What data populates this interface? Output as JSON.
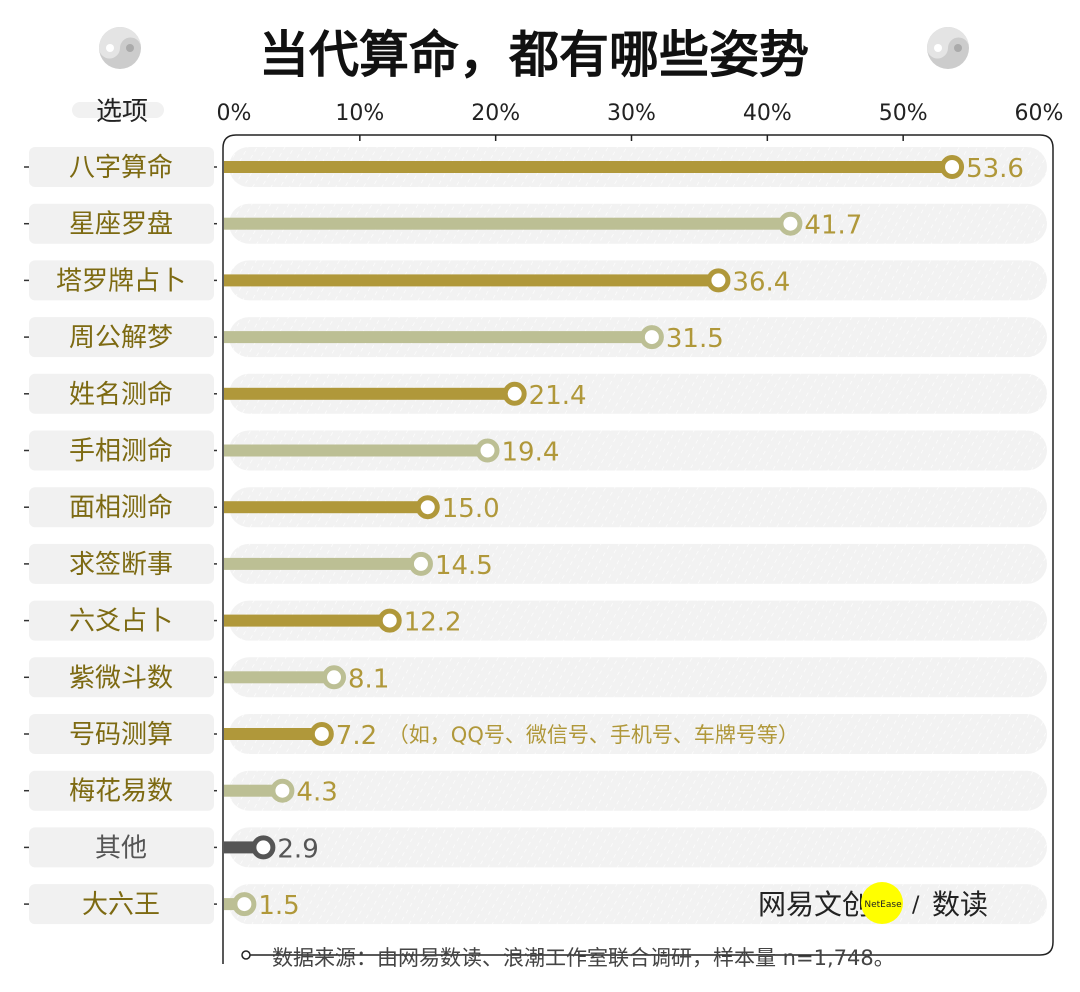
{
  "chart_data": {
    "type": "bar",
    "orientation": "horizontal",
    "style": "lollipop",
    "title": "当代算命，都有哪些姿势",
    "category_header": "选项",
    "xlim": [
      0,
      60
    ],
    "x_ticks": [
      "0%",
      "10%",
      "20%",
      "30%",
      "40%",
      "50%",
      "60%"
    ],
    "categories": [
      "八字算命",
      "星座罗盘",
      "塔罗牌占卜",
      "周公解梦",
      "姓名测命",
      "手相测命",
      "面相测命",
      "求签断事",
      "六爻占卜",
      "紫微斗数",
      "号码测算",
      "梅花易数",
      "其他",
      "大六王"
    ],
    "values": [
      53.6,
      41.7,
      36.4,
      31.5,
      21.4,
      19.4,
      15.0,
      14.5,
      12.2,
      8.1,
      7.2,
      4.3,
      2.9,
      1.5
    ],
    "value_labels": [
      "53.6",
      "41.7",
      "36.4",
      "31.5",
      "21.4",
      "19.4",
      "15.0",
      "14.5",
      "12.2",
      "8.1",
      "7.2",
      "4.3",
      "2.9",
      "1.5"
    ],
    "annotations": [
      {
        "category": "号码测算",
        "text": "（如，QQ号、微信号、手机号、车牌号等）"
      }
    ],
    "grid": false,
    "colors": {
      "primary": "#b0983a",
      "secondary": "#bcbf94",
      "other": "#555555",
      "label_text": "#7d6a12",
      "label_bg": "#f1f1f1",
      "track": "#f2f2f2"
    },
    "source": "数据来源：由网易数读、浪潮工作室联合调研，样本量 n=1,748。"
  },
  "logo": {
    "brand": "网易文创",
    "badge": "NetEase",
    "sub": "数读"
  },
  "icons": [
    "yin-yang-icon",
    "yin-yang-icon"
  ]
}
